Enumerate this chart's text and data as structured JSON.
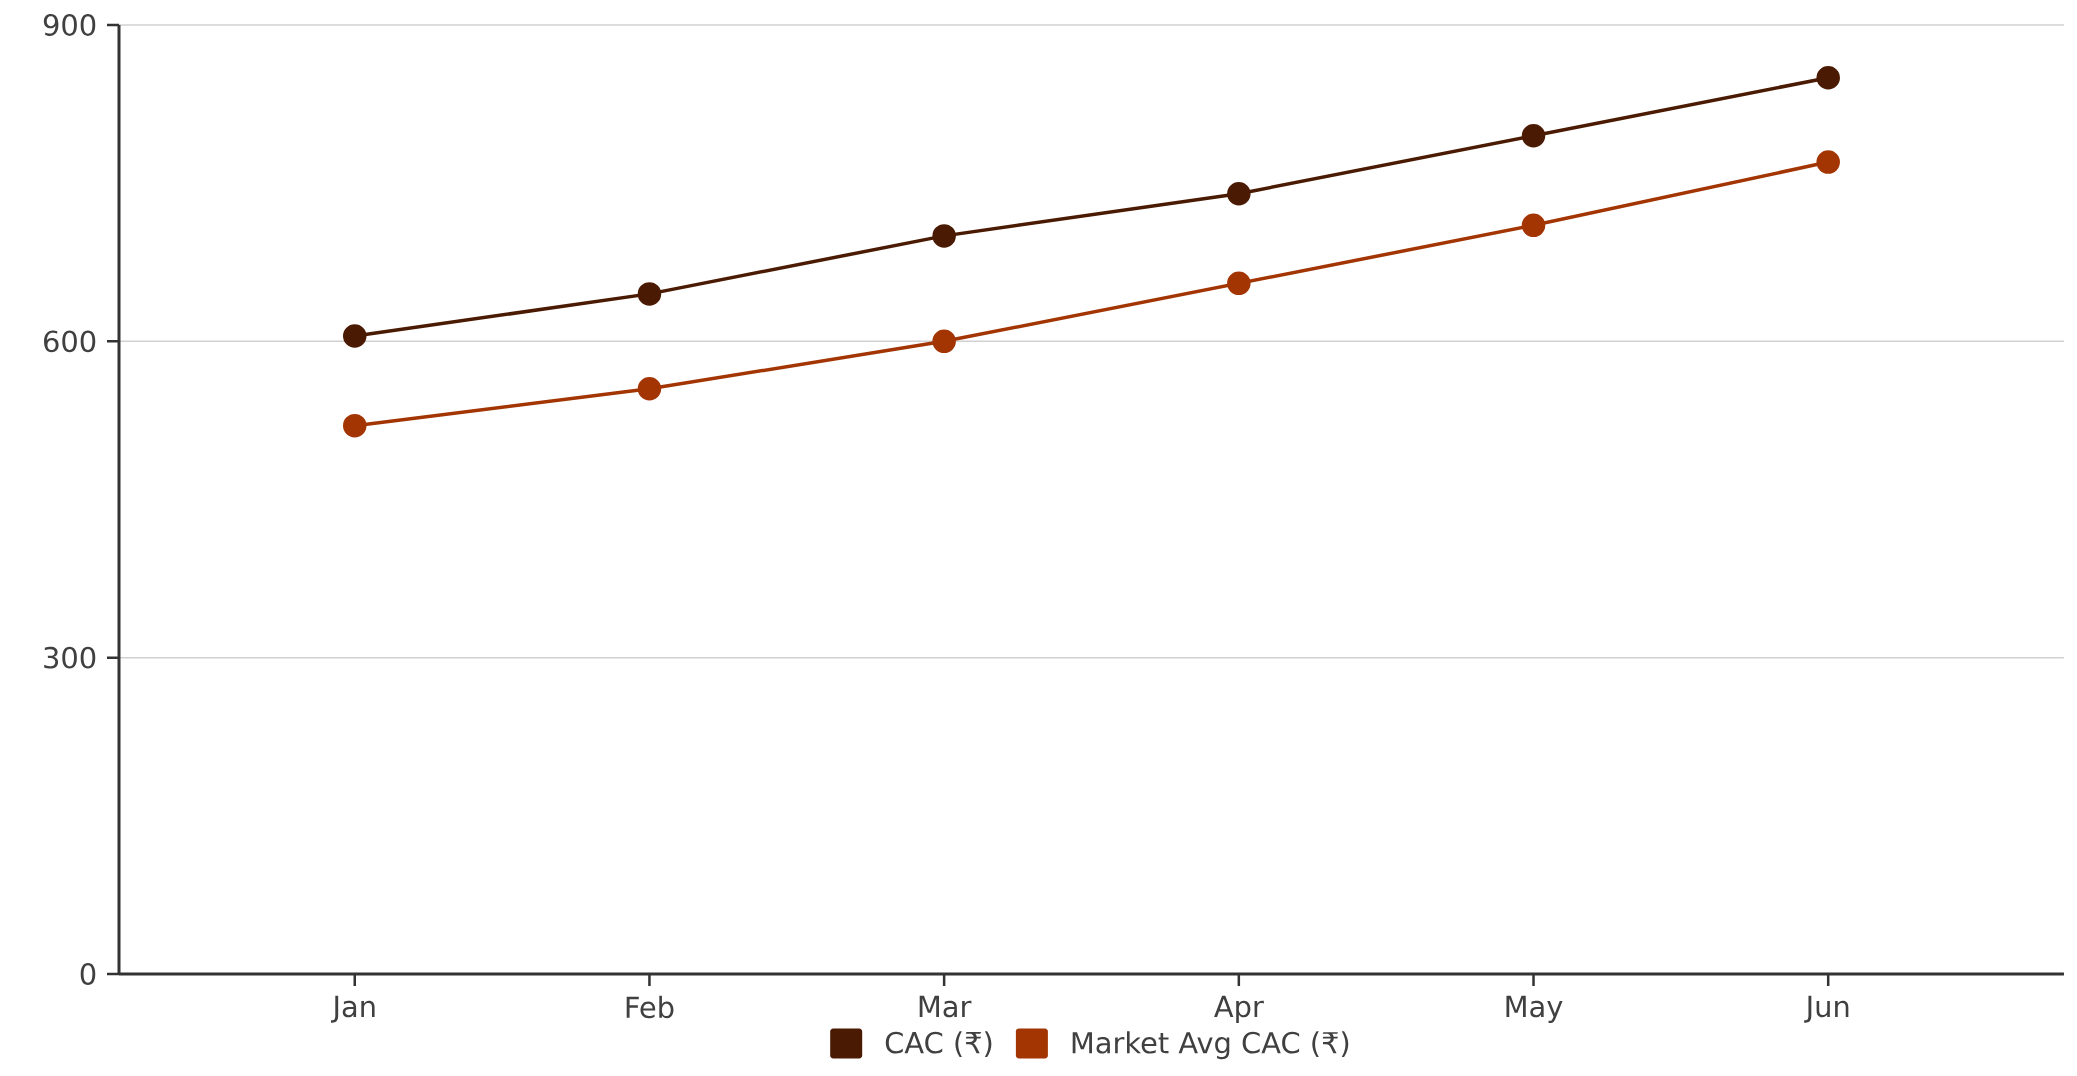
{
  "chart_data": {
    "type": "line",
    "categories": [
      "Jan",
      "Feb",
      "Mar",
      "Apr",
      "May",
      "Jun"
    ],
    "series": [
      {
        "name": "CAC (₹)",
        "color": "#4a1a02",
        "values": [
          605,
          645,
          700,
          740,
          795,
          850
        ]
      },
      {
        "name": "Market Avg CAC (₹)",
        "color": "#a33503",
        "values": [
          520,
          555,
          600,
          655,
          710,
          770
        ]
      }
    ],
    "ylim": [
      0,
      900
    ],
    "yticks": [
      0,
      300,
      600,
      900
    ],
    "grid": "y",
    "legend": "bottom",
    "marker": "circle",
    "line_style": "solid"
  }
}
